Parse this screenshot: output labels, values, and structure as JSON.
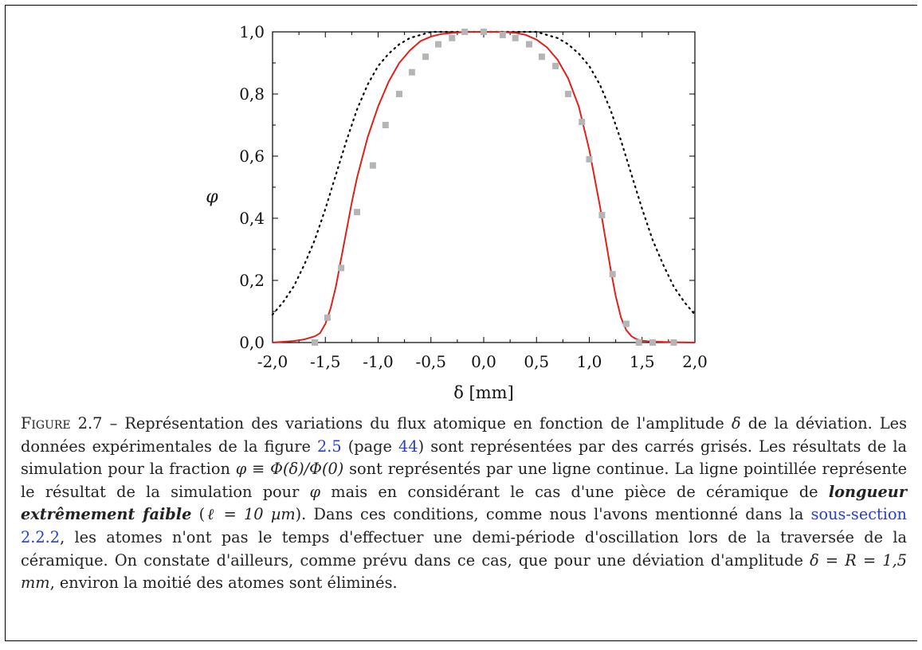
{
  "chart_data": {
    "type": "line",
    "xlabel": "δ [mm]",
    "ylabel": "φ",
    "xlim": [
      -2.0,
      2.0
    ],
    "ylim": [
      0.0,
      1.0
    ],
    "xticks": [
      "-2,0",
      "-1,5",
      "-1,0",
      "-0,5",
      "0,0",
      "0,5",
      "1,0",
      "1,5",
      "2,0"
    ],
    "yticks": [
      "0,0",
      "0,2",
      "0,4",
      "0,6",
      "0,8",
      "1,0"
    ],
    "grid": false,
    "legend": "none",
    "series": [
      {
        "style": "dotted",
        "color": "#000000",
        "x": [
          -2.0,
          -1.9,
          -1.8,
          -1.7,
          -1.6,
          -1.5,
          -1.4,
          -1.3,
          -1.2,
          -1.1,
          -1.0,
          -0.9,
          -0.8,
          -0.7,
          -0.6,
          -0.5,
          -0.4,
          -0.3,
          -0.2,
          -0.1,
          0.0,
          0.1,
          0.2,
          0.3,
          0.4,
          0.5,
          0.6,
          0.7,
          0.8,
          0.9,
          1.0,
          1.1,
          1.2,
          1.3,
          1.4,
          1.5,
          1.6,
          1.7,
          1.8,
          1.9,
          2.0
        ],
        "y": [
          0.09,
          0.13,
          0.18,
          0.25,
          0.33,
          0.43,
          0.54,
          0.65,
          0.75,
          0.83,
          0.89,
          0.93,
          0.96,
          0.98,
          0.99,
          1.0,
          1.0,
          1.0,
          1.0,
          1.0,
          1.0,
          1.0,
          1.0,
          1.0,
          1.0,
          1.0,
          0.99,
          0.98,
          0.96,
          0.93,
          0.89,
          0.83,
          0.75,
          0.65,
          0.54,
          0.43,
          0.33,
          0.25,
          0.18,
          0.13,
          0.09
        ]
      },
      {
        "style": "solid",
        "color": "#e0211b",
        "x": [
          -2.0,
          -1.8,
          -1.7,
          -1.6,
          -1.55,
          -1.5,
          -1.45,
          -1.4,
          -1.35,
          -1.3,
          -1.25,
          -1.2,
          -1.1,
          -1.0,
          -0.9,
          -0.8,
          -0.7,
          -0.6,
          -0.5,
          -0.4,
          -0.3,
          -0.2,
          -0.1,
          0.0,
          0.1,
          0.2,
          0.3,
          0.4,
          0.5,
          0.6,
          0.7,
          0.8,
          0.9,
          1.0,
          1.1,
          1.2,
          1.25,
          1.3,
          1.35,
          1.4,
          1.45,
          1.5,
          1.55,
          1.6,
          1.7,
          1.8,
          2.0
        ],
        "y": [
          0.0,
          0.005,
          0.01,
          0.02,
          0.03,
          0.06,
          0.11,
          0.18,
          0.27,
          0.36,
          0.45,
          0.53,
          0.66,
          0.76,
          0.84,
          0.9,
          0.94,
          0.97,
          0.985,
          0.993,
          0.997,
          0.999,
          1.0,
          1.0,
          1.0,
          0.999,
          0.997,
          0.99,
          0.975,
          0.95,
          0.91,
          0.85,
          0.76,
          0.62,
          0.44,
          0.24,
          0.15,
          0.08,
          0.04,
          0.02,
          0.01,
          0.006,
          0.004,
          0.003,
          0.002,
          0.001,
          0.0
        ]
      },
      {
        "style": "square-markers",
        "color": "#b5b5b5",
        "x": [
          -1.6,
          -1.48,
          -1.35,
          -1.2,
          -1.05,
          -0.93,
          -0.8,
          -0.68,
          -0.55,
          -0.43,
          -0.3,
          -0.18,
          0.0,
          0.18,
          0.3,
          0.43,
          0.55,
          0.68,
          0.8,
          0.93,
          1.0,
          1.12,
          1.22,
          1.35,
          1.47,
          1.6,
          1.8
        ],
        "y": [
          0.0,
          0.08,
          0.24,
          0.42,
          0.57,
          0.7,
          0.8,
          0.87,
          0.92,
          0.96,
          0.98,
          1.0,
          1.0,
          0.99,
          0.98,
          0.96,
          0.92,
          0.89,
          0.8,
          0.71,
          0.59,
          0.41,
          0.22,
          0.06,
          0.0,
          0.0,
          0.0
        ]
      }
    ]
  },
  "caption": {
    "label": "Figure 2.7",
    "sep": " – ",
    "t1": "Représentation des variations du flux atomique en fonction de l'amplitude ",
    "delta": "δ",
    "t2": " de la déviation. Les données expérimentales de la figure ",
    "link_figure": "2.5",
    "t3": " (page ",
    "link_page": "44",
    "t4": ") sont représentées par des carrés grisés. Les résultats de la simulation pour la fraction ",
    "formula": "φ ≡ Φ(δ)/Φ(0)",
    "t5": " sont représentés par une ligne continue. La ligne pointillée représente le résultat de la simulation pour ",
    "phi": "φ",
    "t6": " mais en considérant le cas d'une pièce de céramique de ",
    "emphasis": "longueur extrêmement faible",
    "t7": " (",
    "length": "ℓ = 10 µm",
    "t8": "). Dans ces conditions, comme nous l'avons mentionné dans la ",
    "link_section": "sous-section 2.2.2",
    "t9": ", les atomes n'ont pas le temps d'effectuer une demi-période d'oscillation lors de la traversée de la céramique. On constate d'ailleurs, comme prévu dans ce cas, que pour une déviation d'amplitude ",
    "deviation": "δ = R = 1,5 mm",
    "t10": ", environ la moitié des atomes sont éliminés."
  }
}
